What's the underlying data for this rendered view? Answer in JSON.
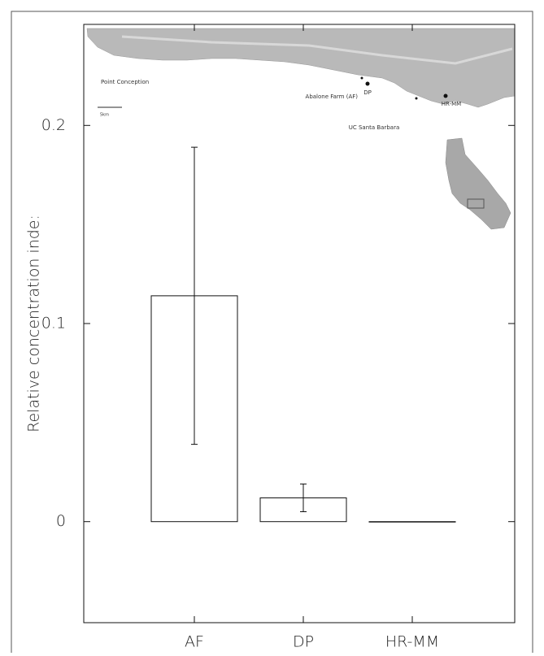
{
  "chart_data": {
    "type": "bar",
    "y_label": "Relative concentration inde:",
    "categories": [
      "AF",
      "DP",
      "HR-MM"
    ],
    "values": [
      0.114,
      0.012,
      0
    ],
    "errors": [
      0.075,
      0.007,
      null
    ],
    "color": "#ffffff",
    "ylim": [
      -0.051,
      0.251
    ],
    "yticks": [
      0,
      0.1,
      0.2
    ],
    "annotations": [
      "Point Conception",
      "Abalone Farm (AF)",
      "DP",
      "UC Santa Barbara",
      "HR-MM",
      "5km"
    ]
  }
}
